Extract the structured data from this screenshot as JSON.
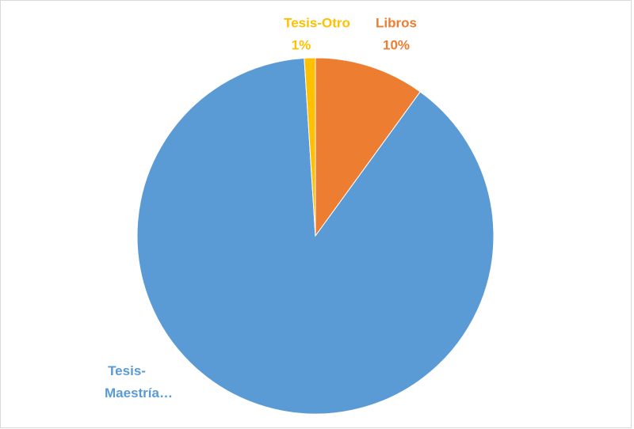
{
  "chart_data": {
    "type": "pie",
    "categories": [
      "Libros",
      "Tesis-Maestría…",
      "Tesis-Otro"
    ],
    "values": [
      10,
      89,
      1
    ],
    "value_labels": [
      "10%",
      null,
      "1%"
    ],
    "colors": [
      "#ED7D31",
      "#5B9BD5",
      "#FFC000"
    ]
  }
}
